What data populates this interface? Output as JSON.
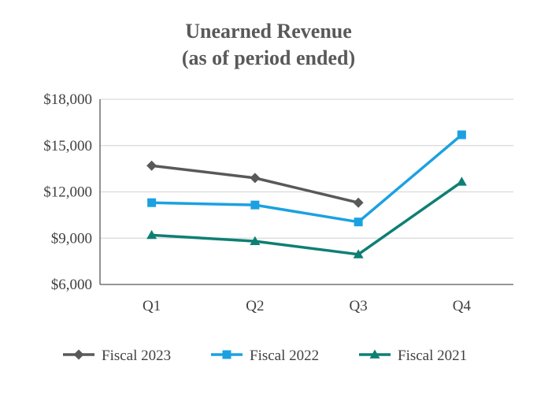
{
  "chart_data": {
    "type": "line",
    "title": "Unearned Revenue",
    "subtitle": "(as of period ended)",
    "xlabel": "",
    "ylabel": "",
    "categories": [
      "Q1",
      "Q2",
      "Q3",
      "Q4"
    ],
    "ylim": [
      6000,
      18000
    ],
    "yticks": [
      6000,
      9000,
      12000,
      15000,
      18000
    ],
    "ytick_labels": [
      "$6,000",
      "$9,000",
      "$12,000",
      "$15,000",
      "$18,000"
    ],
    "grid": true,
    "legend_position": "bottom",
    "series": [
      {
        "name": "Fiscal 2023",
        "color": "#595959",
        "marker": "diamond",
        "values": [
          13700,
          12900,
          11300,
          null
        ]
      },
      {
        "name": "Fiscal 2022",
        "color": "#1ba1e2",
        "marker": "square",
        "values": [
          11300,
          11150,
          10050,
          15700
        ]
      },
      {
        "name": "Fiscal 2021",
        "color": "#0e7f74",
        "marker": "triangle",
        "values": [
          9200,
          8800,
          7950,
          12650
        ]
      }
    ]
  }
}
